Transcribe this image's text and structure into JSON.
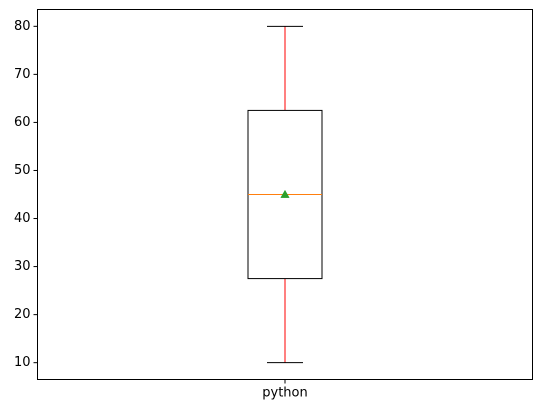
{
  "chart_data": {
    "type": "box",
    "title": "",
    "xlabel": "",
    "ylabel": "",
    "categories": [
      "python"
    ],
    "ylim": [
      6.5,
      83.5
    ],
    "yticks": [
      10,
      20,
      30,
      40,
      50,
      60,
      70,
      80
    ],
    "boxes": [
      {
        "label": "python",
        "whisker_low": 10,
        "q1": 27.5,
        "median": 45,
        "q3": 62.5,
        "whisker_high": 80,
        "mean": 45
      }
    ],
    "colors": {
      "box": "#000000",
      "whisker": "#ff0000",
      "cap": "#000000",
      "median": "#ff7f0e",
      "mean": "#2ca02c"
    }
  }
}
